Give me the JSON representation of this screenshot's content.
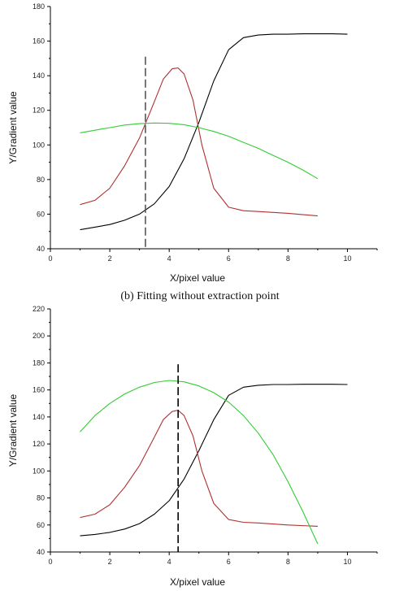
{
  "caption": "(b) Fitting without extraction point",
  "chart_data": [
    {
      "type": "line",
      "xlabel": "X/pixel value",
      "ylabel": "Y/Gradient value",
      "xlim": [
        0,
        11
      ],
      "ylim": [
        40,
        180
      ],
      "xticks": [
        0,
        2,
        4,
        6,
        8,
        10
      ],
      "yticks": [
        40,
        60,
        80,
        100,
        120,
        140,
        160,
        180
      ],
      "vline": {
        "x": 3.2,
        "y0": 40,
        "y1": 151,
        "color": "#555555",
        "style": "dashed"
      },
      "series": [
        {
          "color": "#000000",
          "x": [
            1,
            1.5,
            2,
            2.5,
            3,
            3.5,
            4,
            4.5,
            5,
            5.5,
            6,
            6.5,
            7,
            7.5,
            8,
            8.5,
            9,
            9.5,
            10
          ],
          "y": [
            51,
            52.5,
            54,
            56.5,
            60,
            66,
            76,
            92,
            113,
            137,
            155,
            162,
            163.5,
            164,
            164,
            164.2,
            164.2,
            164.2,
            164
          ]
        },
        {
          "color": "#b03030",
          "x": [
            1,
            1.5,
            2,
            2.5,
            3,
            3.5,
            3.8,
            4.1,
            4.3,
            4.5,
            4.8,
            5.1,
            5.5,
            6,
            6.5,
            7,
            8,
            9
          ],
          "y": [
            65.5,
            68,
            75,
            88,
            104,
            125,
            138,
            144,
            144.5,
            141,
            126,
            100,
            75,
            64,
            62,
            61.5,
            60.5,
            59
          ]
        },
        {
          "color": "#33cc33",
          "x": [
            1,
            1.5,
            2,
            2.5,
            3,
            3.5,
            4,
            4.5,
            5,
            5.5,
            6,
            6.5,
            7,
            7.5,
            8,
            8.5,
            9
          ],
          "y": [
            107,
            108.5,
            110,
            111.5,
            112.3,
            112.7,
            112.5,
            111.7,
            110,
            107.8,
            105,
            101.5,
            98,
            94,
            90,
            85.5,
            80.5
          ]
        }
      ]
    },
    {
      "type": "line",
      "xlabel": "X/pixel value",
      "ylabel": "Y/Gradient value",
      "xlim": [
        0,
        11
      ],
      "ylim": [
        40,
        220
      ],
      "xticks": [
        0,
        2,
        4,
        6,
        8,
        10
      ],
      "yticks": [
        40,
        60,
        80,
        100,
        120,
        140,
        160,
        180,
        200,
        220
      ],
      "vline": {
        "x": 4.3,
        "y0": 40,
        "y1": 179,
        "color": "#000000",
        "style": "dashed"
      },
      "series": [
        {
          "color": "#000000",
          "x": [
            1,
            1.5,
            2,
            2.5,
            3,
            3.5,
            4,
            4.5,
            5,
            5.5,
            6,
            6.5,
            7,
            7.5,
            8,
            8.5,
            9,
            9.5,
            10
          ],
          "y": [
            52,
            53,
            54.5,
            57,
            61,
            68,
            78,
            94,
            115,
            138,
            156,
            162,
            163.5,
            164,
            164,
            164.2,
            164.2,
            164.2,
            164
          ]
        },
        {
          "color": "#b03030",
          "x": [
            1,
            1.5,
            2,
            2.5,
            3,
            3.5,
            3.8,
            4.1,
            4.3,
            4.5,
            4.8,
            5.1,
            5.5,
            6,
            6.5,
            7,
            8,
            9
          ],
          "y": [
            65.5,
            68,
            75,
            88,
            104,
            125,
            138,
            144,
            145,
            141,
            126,
            100,
            76,
            64,
            62,
            61.5,
            60,
            59
          ]
        },
        {
          "color": "#33cc33",
          "x": [
            1,
            1.5,
            2,
            2.5,
            3,
            3.5,
            4,
            4.5,
            5,
            5.5,
            6,
            6.5,
            7,
            7.5,
            8,
            8.5,
            9
          ],
          "y": [
            129,
            141,
            150,
            157,
            162,
            165.5,
            167,
            166,
            163,
            158,
            151,
            141,
            128,
            112,
            92,
            70,
            46
          ]
        }
      ]
    }
  ]
}
